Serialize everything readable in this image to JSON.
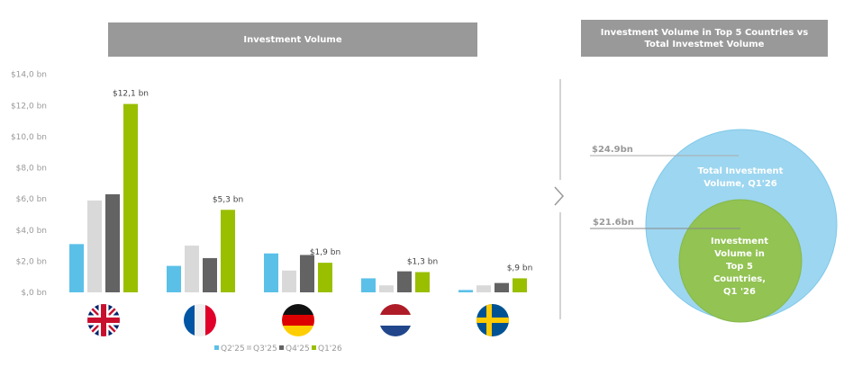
{
  "chart_data": [
    {
      "type": "bar",
      "title": "Investment Volume",
      "categories": [
        "United Kingdom",
        "France",
        "Germany",
        "Netherlands",
        "Sweden"
      ],
      "category_icons": [
        "uk-flag-icon",
        "france-flag-icon",
        "germany-flag-icon",
        "netherlands-flag-icon",
        "sweden-flag-icon"
      ],
      "series": [
        {
          "name": "Q2'25",
          "color": "#5bc0e8",
          "values": [
            3.1,
            1.7,
            2.5,
            0.9,
            0.15
          ]
        },
        {
          "name": "Q3'25",
          "color": "#d9d9d9",
          "values": [
            5.9,
            3.0,
            1.4,
            0.45,
            0.45
          ]
        },
        {
          "name": "Q4'25",
          "color": "#636363",
          "values": [
            6.3,
            2.2,
            2.4,
            1.35,
            0.6
          ]
        },
        {
          "name": "Q1'26",
          "color": "#99bf00",
          "values": [
            12.1,
            5.3,
            1.9,
            1.3,
            0.9
          ]
        }
      ],
      "data_labels": [
        "$12,1 bn",
        "$5,3 bn",
        "$1,9 bn",
        "$1,3 bn",
        "$,9 bn"
      ],
      "yticks": [
        "$,0 bn",
        "$2,0 bn",
        "$4,0 bn",
        "$6,0 bn",
        "$8,0 bn",
        "$10,0 bn",
        "$12,0 bn",
        "$14,0 bn"
      ],
      "ylim": [
        0,
        14
      ],
      "grid": false,
      "legend_position": "bottom"
    },
    {
      "type": "nested-circles",
      "title": "Investment Volume in Top 5 Countries vs  Total Investmet Volume",
      "outer": {
        "value_label": "$24.9bn",
        "value": 24.9,
        "label": "Total Investment Volume, Q1'26",
        "color": "#9dd6f0"
      },
      "inner": {
        "value_label": "$21.6bn",
        "value": 21.6,
        "label": "Investment Volume in Top 5 Countries, Q1 '26",
        "color": "#92c353"
      }
    }
  ]
}
